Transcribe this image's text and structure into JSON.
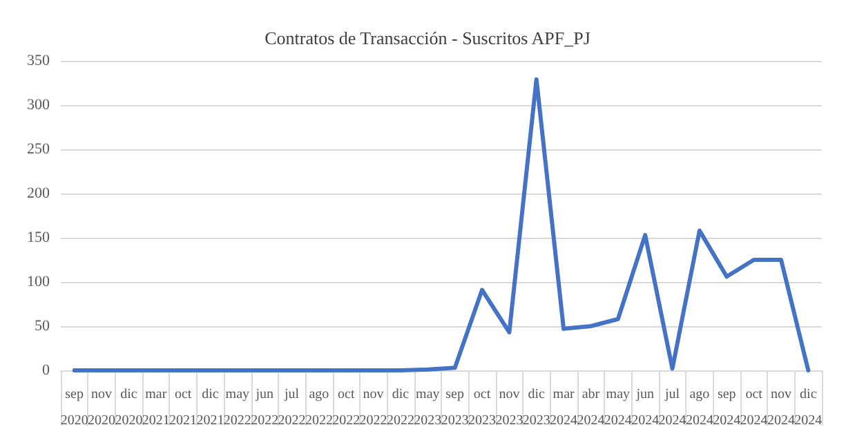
{
  "chart_data": {
    "type": "line",
    "title": "Contratos de Transacción - Suscritos APF_PJ",
    "categories": [
      "sep 2020",
      "nov 2020",
      "dic 2020",
      "mar 2021",
      "oct 2021",
      "dic 2021",
      "may 2022",
      "jun 2022",
      "jul 2022",
      "ago 2022",
      "oct 2022",
      "nov 2022",
      "dic 2022",
      "may 2023",
      "sep 2023",
      "oct 2023",
      "nov 2023",
      "dic 2023",
      "mar 2024",
      "abr 2024",
      "may 2024",
      "jun 2024",
      "jul 2024",
      "ago 2024",
      "sep 2024",
      "oct 2024",
      "nov 2024",
      "dic 2024"
    ],
    "series": [
      {
        "color": "#4472c4",
        "values": [
          0,
          0,
          0,
          0,
          0,
          0,
          0,
          0,
          0,
          0,
          0,
          0,
          0,
          1,
          3,
          91,
          43,
          329,
          47,
          50,
          58,
          153,
          2,
          158,
          106,
          125,
          125,
          0
        ]
      }
    ],
    "ylim": [
      0,
      350
    ],
    "yticks": [
      0,
      50,
      100,
      150,
      200,
      250,
      300,
      350
    ],
    "grid": "y",
    "marker": "none",
    "line_style": "solid"
  }
}
